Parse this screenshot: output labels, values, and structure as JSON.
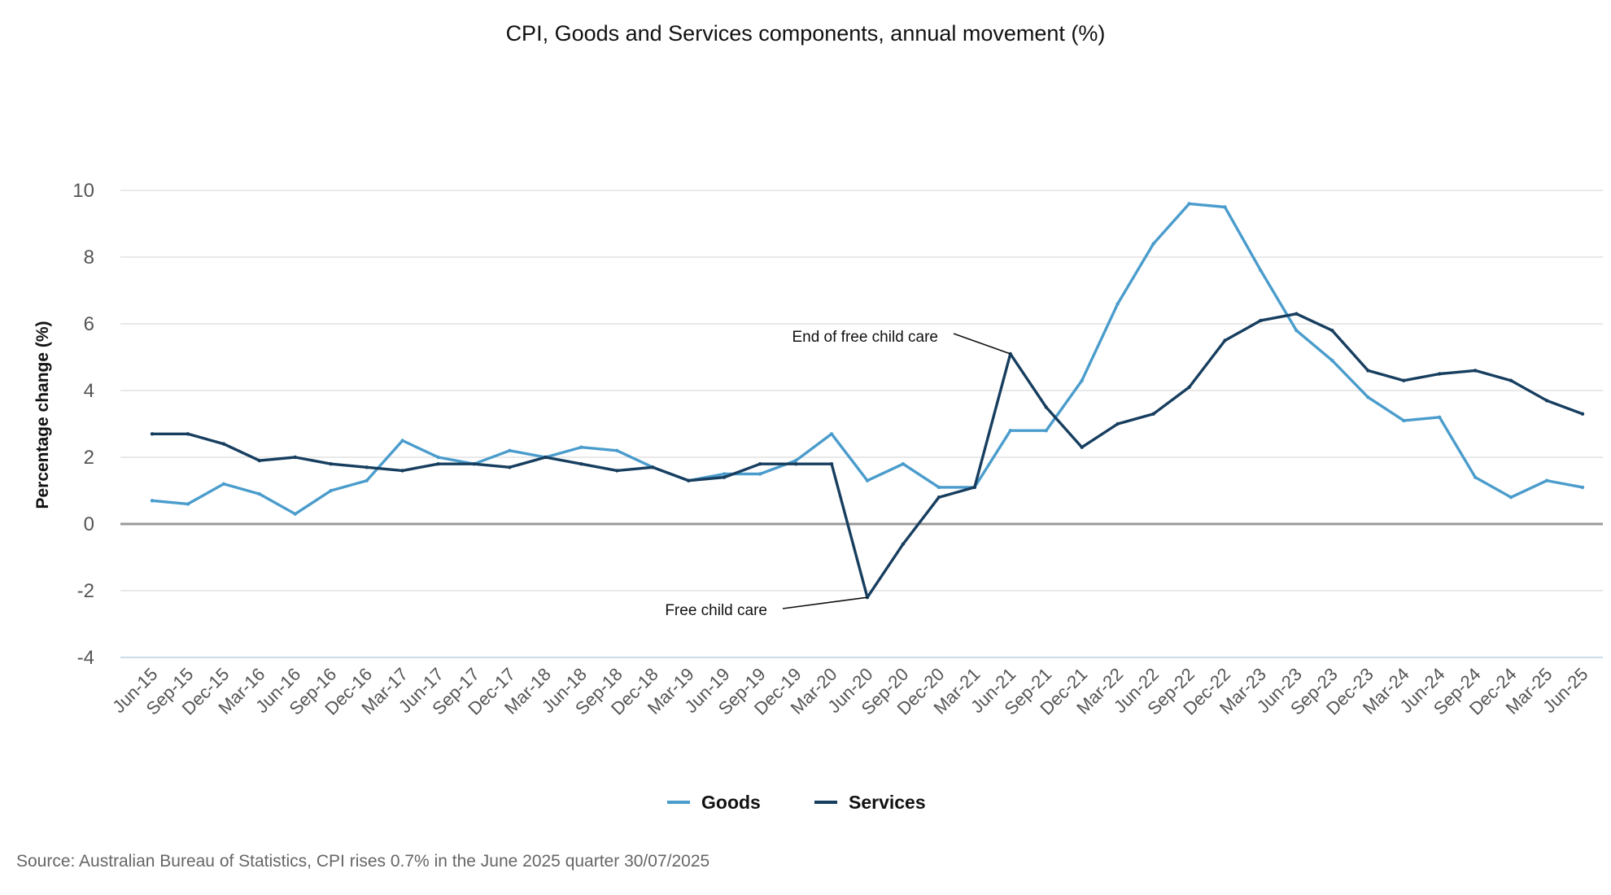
{
  "chart_data": {
    "type": "line",
    "title": "CPI, Goods and Services components, annual movement (%)",
    "xlabel": "",
    "ylabel": "Percentage change (%)",
    "ylim": [
      -4,
      10
    ],
    "yticks": [
      "10",
      "8",
      "6",
      "4",
      "2",
      "0",
      "-2",
      "-4"
    ],
    "ytick_values": [
      10,
      8,
      6,
      4,
      2,
      0,
      -2,
      -4
    ],
    "grid": true,
    "legend_position": "bottom-center",
    "categories": [
      "Jun-15",
      "Sep-15",
      "Dec-15",
      "Mar-16",
      "Jun-16",
      "Sep-16",
      "Dec-16",
      "Mar-17",
      "Jun-17",
      "Sep-17",
      "Dec-17",
      "Mar-18",
      "Jun-18",
      "Sep-18",
      "Dec-18",
      "Mar-19",
      "Jun-19",
      "Sep-19",
      "Dec-19",
      "Mar-20",
      "Jun-20",
      "Sep-20",
      "Dec-20",
      "Mar-21",
      "Jun-21",
      "Sep-21",
      "Dec-21",
      "Mar-22",
      "Jun-22",
      "Sep-22",
      "Dec-22",
      "Mar-23",
      "Jun-23",
      "Sep-23",
      "Dec-23",
      "Mar-24",
      "Jun-24",
      "Sep-24",
      "Dec-24",
      "Mar-25",
      "Jun-25"
    ],
    "series": [
      {
        "name": "Goods",
        "color": "#4a9ccc",
        "values": [
          0.7,
          0.6,
          1.2,
          0.9,
          0.3,
          1.0,
          1.3,
          2.5,
          2.0,
          1.8,
          2.2,
          2.0,
          2.3,
          2.2,
          1.7,
          1.3,
          1.5,
          1.5,
          1.9,
          2.7,
          1.3,
          1.8,
          1.1,
          1.1,
          2.8,
          2.8,
          4.3,
          6.6,
          8.4,
          9.6,
          9.5,
          7.6,
          5.8,
          4.9,
          3.8,
          3.1,
          3.2,
          1.4,
          0.8,
          1.3,
          1.1
        ]
      },
      {
        "name": "Services",
        "color": "#173e5f",
        "values": [
          2.7,
          2.7,
          2.4,
          1.9,
          2.0,
          1.8,
          1.7,
          1.6,
          1.8,
          1.8,
          1.7,
          2.0,
          1.8,
          1.6,
          1.7,
          1.3,
          1.4,
          1.8,
          1.8,
          1.8,
          -2.2,
          -0.6,
          0.8,
          1.1,
          5.1,
          3.5,
          2.3,
          3.0,
          3.3,
          4.1,
          5.5,
          6.1,
          6.3,
          5.8,
          4.6,
          4.3,
          4.5,
          4.6,
          4.3,
          3.7,
          3.3
        ]
      }
    ],
    "annotations": [
      {
        "text": "End of free child care",
        "category": "Jun-21",
        "series": "Services",
        "value": 5.1,
        "placement": "upper-left"
      },
      {
        "text": "Free child care",
        "category": "Jun-20",
        "series": "Services",
        "value": -2.2,
        "placement": "lower-left"
      }
    ]
  },
  "source": "Source: Australian Bureau of Statistics, CPI rises 0.7% in the June 2025 quarter 30/07/2025"
}
